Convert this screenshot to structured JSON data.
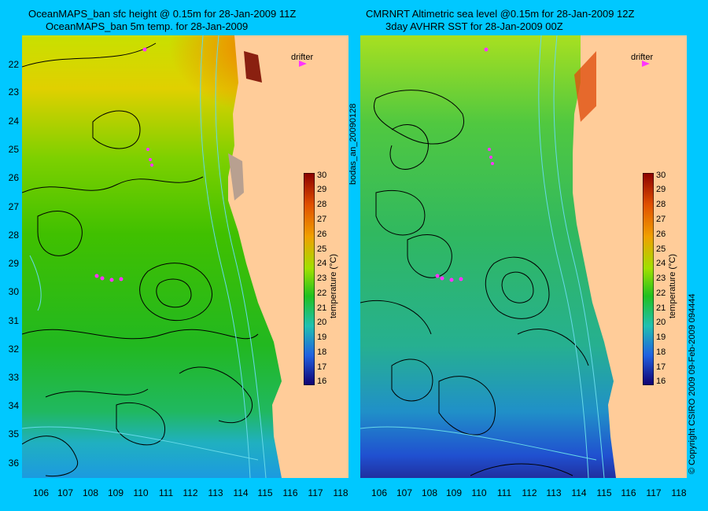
{
  "left_panel": {
    "title_line1": "OceanMAPS_ban sfc height @ 0.15m for 28-Jan-2009 11Z",
    "title_line2": "OceanMAPS_ban 5m temp. for 28-Jan-2009",
    "drifter_label": "drifter",
    "colorbar_label": "temperature (°C)",
    "side_label": "bodas_an_20090128"
  },
  "right_panel": {
    "title_line1": "CMRNRT Altimetric sea level  @0.15m  for 28-Jan-2009 12Z",
    "title_line2": "3day AVHRR SST for 28-Jan-2009 00Z",
    "drifter_label": "drifter",
    "colorbar_label": "temperature (°C)",
    "side_label": "© Copyright CSIRO 2009   09-Feb-2009 094444"
  },
  "axes": {
    "lat_ticks": [
      "22",
      "23",
      "24",
      "25",
      "26",
      "27",
      "28",
      "29",
      "30",
      "31",
      "32",
      "33",
      "34",
      "35",
      "36"
    ],
    "lon_ticks": [
      "106",
      "107",
      "108",
      "109",
      "110",
      "111",
      "112",
      "113",
      "114",
      "115",
      "116",
      "117",
      "118"
    ]
  },
  "colorbar": {
    "ticks": [
      "30",
      "29",
      "28",
      "27",
      "26",
      "25",
      "24",
      "23",
      "22",
      "21",
      "20",
      "19",
      "18",
      "17",
      "16"
    ],
    "range": [
      16,
      30
    ]
  },
  "colors": {
    "background": "#00c8ff",
    "land": "#ffcc99",
    "contour": "#000000",
    "bathymetry": "#66d9e8",
    "drifter": "#ff33ff"
  }
}
